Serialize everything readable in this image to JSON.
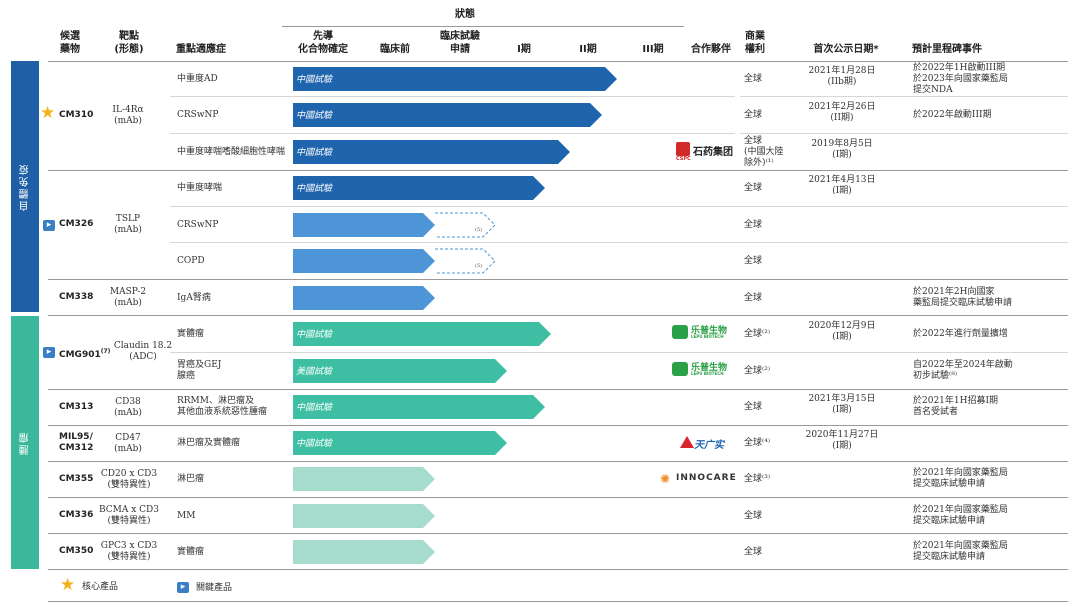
{
  "header": {
    "status": "狀態",
    "col_candidate": "候選\n藥物",
    "col_target": "靶點\n(形態)",
    "col_indication": "重點適應症",
    "col_lead": "先導\n化合物確定",
    "col_preclinical": "臨床前",
    "col_ind": "臨床試驗\n申請",
    "col_p1": "I期",
    "col_p2": "II期",
    "col_p3": "III期",
    "col_partner": "合作夥伴",
    "col_rights": "商業\n權利",
    "col_first_date": "首次公示日期*",
    "col_milestone": "預計里程碑事件"
  },
  "sections": {
    "autoimmune": "自體免疫",
    "oncology": "腫瘤"
  },
  "colors": {
    "dark_blue": "#1f65ad",
    "light_blue": "#4d95d6",
    "teal": "#3ebfa3",
    "pale_teal": "#a6dccd",
    "sidebar_blue": "#1f5fa6",
    "sidebar_teal": "#3bb89b"
  },
  "drugs": {
    "cm310": {
      "name": "CM310",
      "target": "IL-4Rα\n(mAb)"
    },
    "cm326": {
      "name": "CM326",
      "target": "TSLP\n(mAb)"
    },
    "cm338": {
      "name": "CM338",
      "target": "MASP-2\n(mAb)"
    },
    "cmg901": {
      "name": "CMG901",
      "sup": "(7)",
      "target": "Claudin 18.2\n(ADC)"
    },
    "cm313": {
      "name": "CM313",
      "target": "CD38\n(mAb)"
    },
    "mil95": {
      "name": "MIL95/\nCM312",
      "target": "CD47\n(mAb)"
    },
    "cm355": {
      "name": "CM355",
      "target": "CD20 x CD3\n(雙特異性)"
    },
    "cm336": {
      "name": "CM336",
      "target": "BCMA x CD3\n(雙特異性)"
    },
    "cm350": {
      "name": "CM350",
      "target": "GPC3 x CD3\n(雙特異性)"
    }
  },
  "rows": [
    {
      "indication": "中重度AD",
      "bar_label": "中國試驗",
      "bar_color": "dark_blue",
      "progress": 5.15,
      "rights": "全球",
      "date": "2021年1月28日\n(IIb期)",
      "milestone": "於2022年1H啟動III期\n於2023年向國家藥監局\n提交NDA"
    },
    {
      "indication": "CRSwNP",
      "bar_label": "中國試驗",
      "bar_color": "dark_blue",
      "progress": 4.9,
      "rights": "全球",
      "date": "2021年2月26日\n(II期)",
      "milestone": "於2022年啟動III期"
    },
    {
      "indication": "中重度哮喘嗜酸細胞性哮喘",
      "bar_label": "中國試驗",
      "bar_color": "dark_blue",
      "progress": 4.4,
      "rights": "全球\n(中國大陸\n除外)⁽¹⁾",
      "date": "2019年8月5日\n(I期)",
      "milestone": ""
    },
    {
      "indication": "中重度哮喘",
      "bar_label": "中國試驗",
      "bar_color": "dark_blue",
      "progress": 4.0,
      "rights": "全球",
      "date": "2021年4月13日\n(I期)",
      "milestone": ""
    },
    {
      "indication": "CRSwNP",
      "bar_label": "",
      "bar_color": "light_blue",
      "progress": 2.25,
      "dashed": "(5)",
      "rights": "全球",
      "date": "",
      "milestone": ""
    },
    {
      "indication": "COPD",
      "bar_label": "",
      "bar_color": "light_blue",
      "progress": 2.25,
      "dashed": "(5)",
      "rights": "全球",
      "date": "",
      "milestone": ""
    },
    {
      "indication": "IgA腎病",
      "bar_label": "",
      "bar_color": "light_blue",
      "progress": 2.25,
      "rights": "全球",
      "date": "",
      "milestone": "於2021年2H向國家\n藥監局提交臨床試驗申請"
    },
    {
      "indication": "實體瘤",
      "bar_label": "中國試驗",
      "bar_color": "teal",
      "progress": 4.1,
      "rights": "全球⁽²⁾",
      "date": "2020年12月9日\n(I期)",
      "milestone": "於2022年進行劑量擴增"
    },
    {
      "indication": "胃癌及GEJ\n腺癌",
      "bar_label": "美國試驗",
      "bar_color": "teal",
      "progress": 3.4,
      "rights": "全球⁽²⁾",
      "date": "",
      "milestone": "自2022年至2024年啟動\n初步試驗⁽⁸⁾"
    },
    {
      "indication": "RRMM、淋巴瘤及\n其他血液系統惡性腫瘤",
      "bar_label": "中國試驗",
      "bar_color": "teal",
      "progress": 4.0,
      "rights": "全球",
      "date": "2021年3月15日\n(I期)",
      "milestone": "於2021年1H招募I期\n首名受試者"
    },
    {
      "indication": "淋巴瘤及實體瘤",
      "bar_label": "中國試驗",
      "bar_color": "teal",
      "progress": 3.4,
      "rights": "全球⁽⁴⁾",
      "date": "2020年11月27日\n(I期)",
      "milestone": ""
    },
    {
      "indication": "淋巴瘤",
      "bar_label": "",
      "bar_color": "pale_teal",
      "progress": 2.25,
      "rights": "全球⁽³⁾",
      "date": "",
      "milestone": "於2021年向國家藥監局\n提交臨床試驗申請"
    },
    {
      "indication": "MM",
      "bar_label": "",
      "bar_color": "pale_teal",
      "progress": 2.25,
      "rights": "全球",
      "date": "",
      "milestone": "於2021年向國家藥監局\n提交臨床試驗申請"
    },
    {
      "indication": "實體瘤",
      "bar_label": "",
      "bar_color": "pale_teal",
      "progress": 2.25,
      "rights": "全球",
      "date": "",
      "milestone": "於2021年向國家藥監局\n提交臨床試驗申請"
    }
  ],
  "partners": {
    "cspc": "石药集团",
    "cspc_small": "CSPC",
    "lepu": "乐普生物",
    "lepu_small": "LEPU BIOTECH",
    "innocare": "INNOCARE",
    "tianguangshi": "天广实"
  },
  "legend": {
    "core": "核心產品",
    "key": "關鍵產品"
  }
}
